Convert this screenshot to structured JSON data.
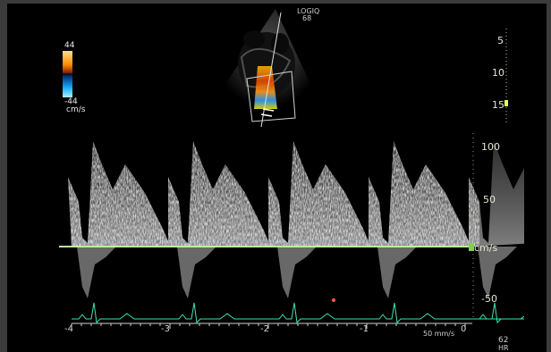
{
  "device": {
    "model": "LOGIQ",
    "frame_label": "68"
  },
  "color_bar": {
    "top_value": "44",
    "bottom_value": "-44",
    "unit": "cm/s",
    "top_color": "#ff8a00",
    "bottom_color": "#19b0ff"
  },
  "depth_scale": {
    "ticks": [
      "5",
      "10",
      "15"
    ],
    "marker_color": "#e8ff60"
  },
  "velocity_scale": {
    "ticks": [
      "100",
      "50",
      "cm/s",
      "-50"
    ],
    "baseline_color": "#b8f0a0"
  },
  "time_axis": {
    "ticks": [
      "-4",
      "-3",
      "-2",
      "-1",
      "0"
    ],
    "sweep_speed": "50 mm/s"
  },
  "heart_rate": {
    "value": "62",
    "unit": "HR"
  },
  "ecg": {
    "trace_color": "#3fe0b0"
  },
  "colors": {
    "background": "#000000",
    "frame": "#3b3b3b",
    "doppler_trace": "#e8e8e8"
  }
}
